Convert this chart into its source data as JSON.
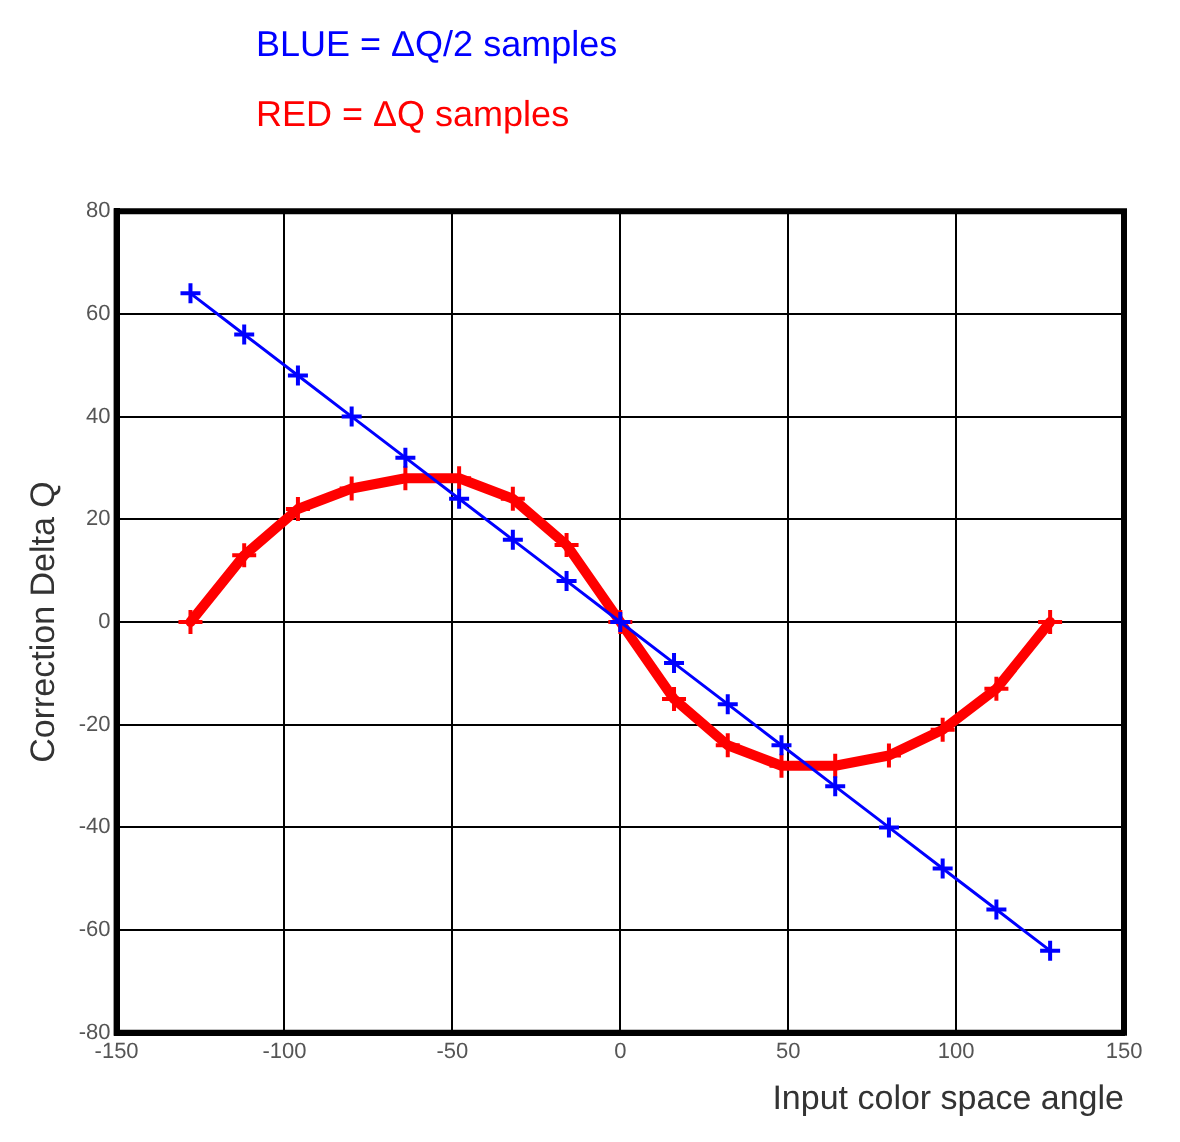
{
  "chart_data": {
    "type": "line",
    "xlabel": "Input color space angle",
    "ylabel": "Correction Delta Q",
    "annotations": [
      "BLUE = ΔQ/2 samples",
      "RED = ΔQ samples"
    ],
    "x": [
      -128,
      -112,
      -96,
      -80,
      -64,
      -48,
      -32,
      -16,
      0,
      16,
      32,
      48,
      64,
      80,
      96,
      112,
      128
    ],
    "series": [
      {
        "color": "#0000ff",
        "values": [
          64,
          56,
          48,
          40,
          32,
          24,
          16,
          8,
          0,
          -8,
          -16,
          -24,
          -32,
          -40,
          -48,
          -56,
          -64
        ]
      },
      {
        "color": "#ff0000",
        "values": [
          0,
          13,
          22,
          26,
          28,
          28,
          24,
          15,
          0,
          -15,
          -24,
          -28,
          -28,
          -26,
          -21,
          -13,
          0
        ]
      }
    ],
    "xlim": [
      -150,
      150
    ],
    "xticks": [
      -150,
      -100,
      -50,
      0,
      50,
      100,
      150
    ],
    "ylim": [
      -80,
      80
    ],
    "yticks": [
      -80,
      -60,
      -40,
      -20,
      0,
      20,
      40,
      60,
      80
    ],
    "grid": true,
    "marker": "cross",
    "line_style": "solid"
  }
}
